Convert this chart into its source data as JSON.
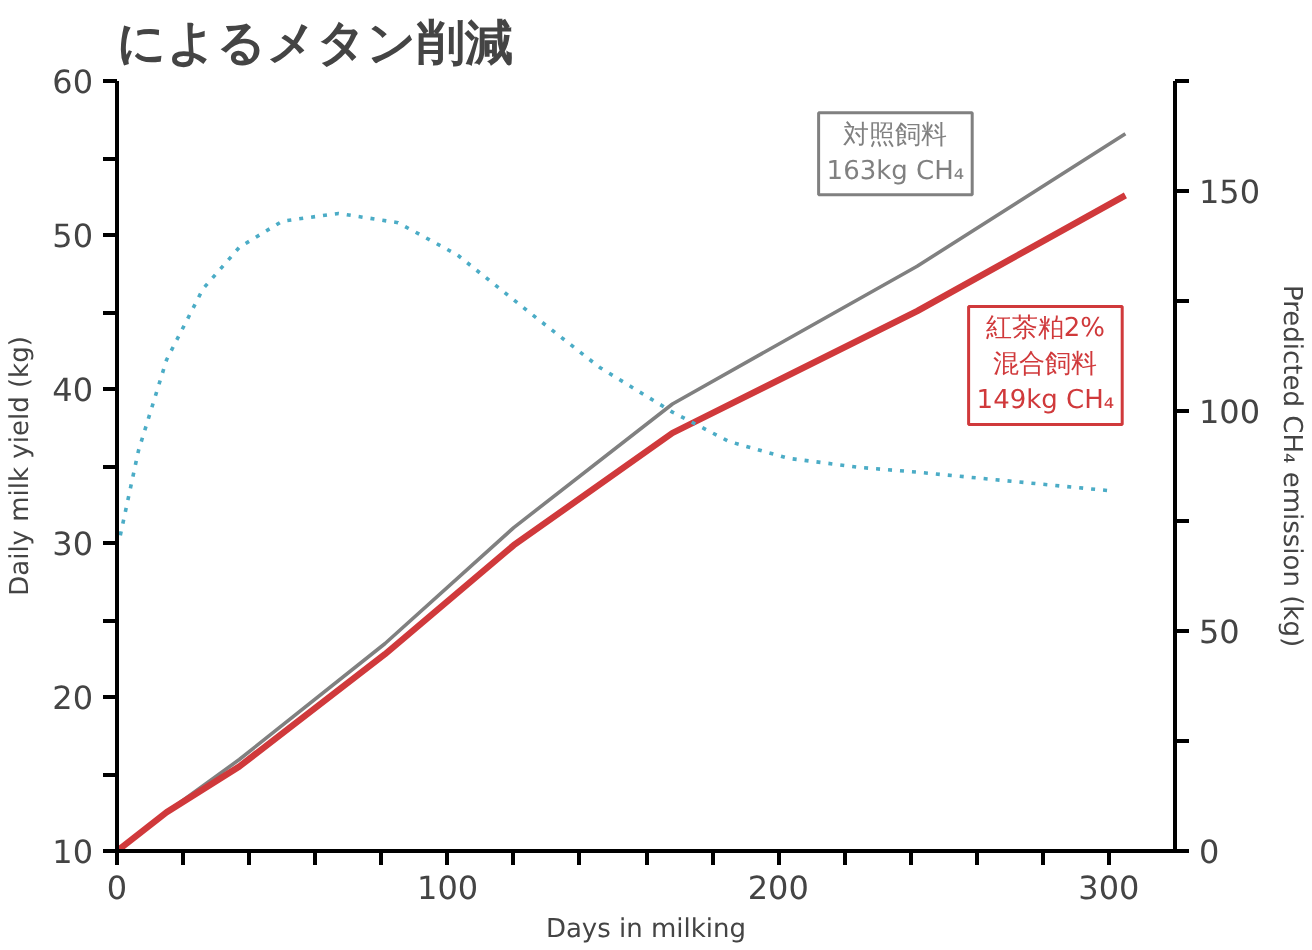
{
  "chart_data": {
    "type": "line",
    "title": "によるメタン削減",
    "xlabel": "Days in milking",
    "ylabel": "Daily milk yield (kg)",
    "y2label": "Predicted CH₄ emission (kg)",
    "xlim": [
      0,
      320
    ],
    "xticks": [
      0,
      {
        "value": 20,
        "label": null
      },
      {
        "value": 40,
        "label": null
      },
      {
        "value": 60,
        "label": null
      },
      {
        "value": 80,
        "label": null
      },
      100,
      {
        "value": 120,
        "label": null
      },
      {
        "value": 140,
        "label": null
      },
      {
        "value": 160,
        "label": null
      },
      {
        "value": 180,
        "label": null
      },
      200,
      {
        "value": 220,
        "label": null
      },
      {
        "value": 240,
        "label": null
      },
      {
        "value": 260,
        "label": null
      },
      {
        "value": 280,
        "label": null
      },
      300
    ],
    "ylim": [
      10,
      60
    ],
    "yticks": [
      10,
      {
        "value": 15,
        "label": null
      },
      20,
      {
        "value": 25,
        "label": null
      },
      30,
      {
        "value": 35,
        "label": null
      },
      40,
      {
        "value": 45,
        "label": null
      },
      50,
      {
        "value": 55,
        "label": null
      },
      60
    ],
    "y2lim": [
      0,
      175
    ],
    "y2ticks": [
      0,
      {
        "value": 25,
        "label": null
      },
      50,
      {
        "value": 75,
        "label": null
      },
      100,
      {
        "value": 125,
        "label": null
      },
      150,
      {
        "value": 175,
        "label": null
      }
    ],
    "grid": false,
    "marker": "none",
    "series": [
      {
        "name": "対照飼料\n163kg CH₄",
        "color": "#808080",
        "axis": "y2",
        "line_style": "solid",
        "x": [
          0,
          15,
          37,
          81,
          120,
          168,
          242,
          305
        ],
        "values": [
          0,
          8.8,
          20.8,
          47.1,
          73.5,
          101.6,
          132.9,
          163
        ]
      },
      {
        "name": "紅茶粕2%\n混合飼料\n149kg CH₄",
        "color": "#d0393b",
        "axis": "y2",
        "line_style": "solid",
        "x": [
          0,
          15,
          37,
          81,
          120,
          168,
          242,
          305
        ],
        "values": [
          0,
          8.8,
          19.2,
          44.7,
          69.5,
          95.0,
          122.7,
          149
        ]
      },
      {
        "color": "#4bacc6",
        "line_style": "dotted",
        "x": [
          1,
          6.5,
          15,
          26,
          37,
          50,
          67,
          85,
          103,
          124,
          146,
          168,
          185,
          203,
          225,
          242,
          300
        ],
        "values": [
          30.5,
          36.0,
          41.9,
          46.5,
          49.2,
          50.9,
          51.4,
          50.8,
          48.7,
          45.1,
          41.4,
          38.5,
          36.6,
          35.5,
          34.9,
          34.6,
          33.4
        ]
      }
    ]
  }
}
